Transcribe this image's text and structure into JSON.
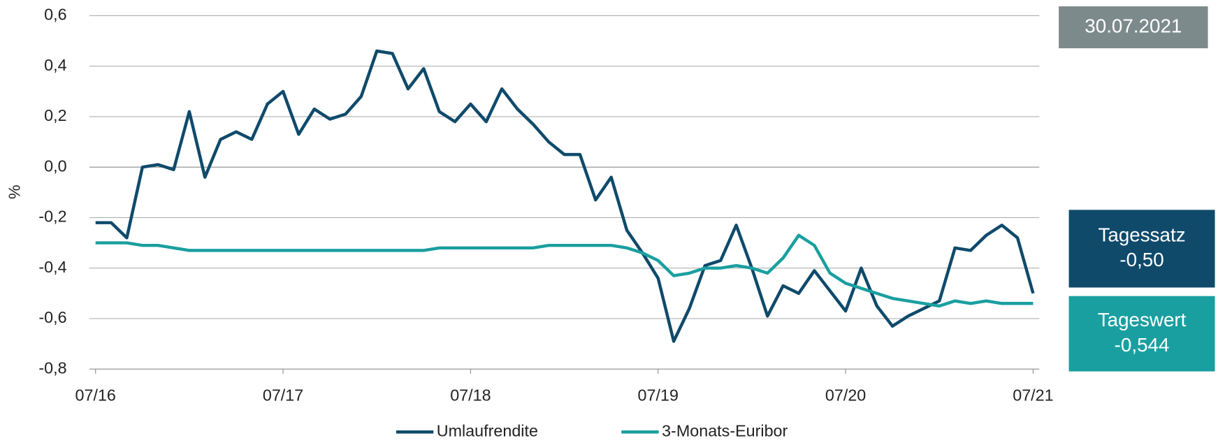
{
  "chart_data": {
    "type": "line",
    "y_label": "%",
    "categories": [
      "07/16",
      null,
      null,
      null,
      null,
      null,
      null,
      null,
      null,
      null,
      null,
      null,
      "07/17",
      null,
      null,
      null,
      null,
      null,
      null,
      null,
      null,
      null,
      null,
      null,
      "07/18",
      null,
      null,
      null,
      null,
      null,
      null,
      null,
      null,
      null,
      null,
      null,
      "07/19",
      null,
      null,
      null,
      null,
      null,
      null,
      null,
      null,
      null,
      null,
      null,
      "07/20",
      null,
      null,
      null,
      null,
      null,
      null,
      null,
      null,
      null,
      null,
      null,
      "07/21"
    ],
    "series": [
      {
        "name": "Umlaufrendite",
        "color": "#0f4a6b",
        "values": [
          -0.22,
          -0.22,
          -0.28,
          0.0,
          0.01,
          -0.01,
          0.22,
          -0.04,
          0.11,
          0.14,
          0.11,
          0.25,
          0.3,
          0.13,
          0.23,
          0.19,
          0.21,
          0.28,
          0.46,
          0.45,
          0.31,
          0.39,
          0.22,
          0.18,
          0.25,
          0.18,
          0.31,
          0.23,
          0.17,
          0.1,
          0.05,
          0.05,
          -0.13,
          -0.04,
          -0.25,
          -0.34,
          -0.44,
          -0.69,
          -0.56,
          -0.39,
          -0.37,
          -0.23,
          -0.4,
          -0.59,
          -0.47,
          -0.5,
          -0.41,
          -0.49,
          -0.57,
          -0.4,
          -0.55,
          -0.63,
          -0.59,
          -0.56,
          -0.53,
          -0.32,
          -0.33,
          -0.27,
          -0.23,
          -0.28,
          -0.5
        ]
      },
      {
        "name": "3-Monats-Euribor",
        "color": "#1a9fa0",
        "values": [
          -0.3,
          -0.3,
          -0.3,
          -0.31,
          -0.31,
          -0.32,
          -0.33,
          -0.33,
          -0.33,
          -0.33,
          -0.33,
          -0.33,
          -0.33,
          -0.33,
          -0.33,
          -0.33,
          -0.33,
          -0.33,
          -0.33,
          -0.33,
          -0.33,
          -0.33,
          -0.32,
          -0.32,
          -0.32,
          -0.32,
          -0.32,
          -0.32,
          -0.32,
          -0.31,
          -0.31,
          -0.31,
          -0.31,
          -0.31,
          -0.32,
          -0.34,
          -0.37,
          -0.43,
          -0.42,
          -0.4,
          -0.4,
          -0.39,
          -0.4,
          -0.42,
          -0.36,
          -0.27,
          -0.31,
          -0.42,
          -0.46,
          -0.48,
          -0.5,
          -0.52,
          -0.53,
          -0.54,
          -0.55,
          -0.53,
          -0.54,
          -0.53,
          -0.54,
          -0.54,
          -0.54
        ]
      }
    ],
    "ylim": [
      -0.8,
      0.6
    ],
    "yticks": [
      {
        "value": -0.8,
        "label": "-0,8"
      },
      {
        "value": -0.6,
        "label": "-0,6"
      },
      {
        "value": -0.4,
        "label": "-0,4"
      },
      {
        "value": -0.2,
        "label": "-0,2"
      },
      {
        "value": 0,
        "label": "0,0"
      },
      {
        "value": 0.2,
        "label": "0,2"
      },
      {
        "value": 0.4,
        "label": "0,4"
      },
      {
        "value": 0.6,
        "label": "0,6"
      }
    ],
    "grid": true,
    "annotations": [
      {
        "lines": [
          "30.07.2021"
        ],
        "color": "#7d8a8c"
      },
      {
        "lines": [
          "Tagessatz",
          "-0,50"
        ],
        "color": "#0f4a6b"
      },
      {
        "lines": [
          "Tageswert",
          "-0,544"
        ],
        "color": "#1a9fa0"
      }
    ]
  }
}
